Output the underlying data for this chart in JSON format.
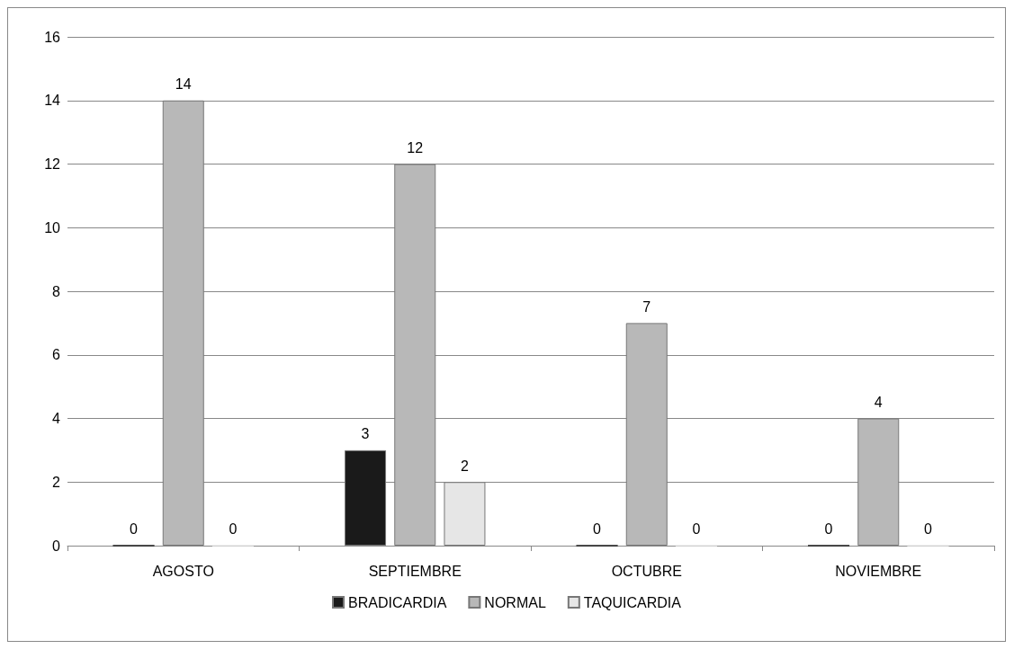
{
  "chart_data": {
    "type": "bar",
    "categories": [
      "AGOSTO",
      "SEPTIEMBRE",
      "OCTUBRE",
      "NOVIEMBRE"
    ],
    "series": [
      {
        "name": "BRADICARDIA",
        "color": "#1a1a1a",
        "values": [
          0,
          3,
          0,
          0
        ]
      },
      {
        "name": "NORMAL",
        "color": "#b8b8b8",
        "values": [
          14,
          12,
          7,
          4
        ]
      },
      {
        "name": "TAQUICARDIA",
        "color": "#e6e6e6",
        "values": [
          0,
          2,
          0,
          0
        ]
      }
    ],
    "ylim": [
      0,
      16
    ],
    "yticks": [
      0,
      2,
      4,
      6,
      8,
      10,
      12,
      14,
      16
    ],
    "grid": "y",
    "legend": "bottom",
    "data_labels": true
  }
}
